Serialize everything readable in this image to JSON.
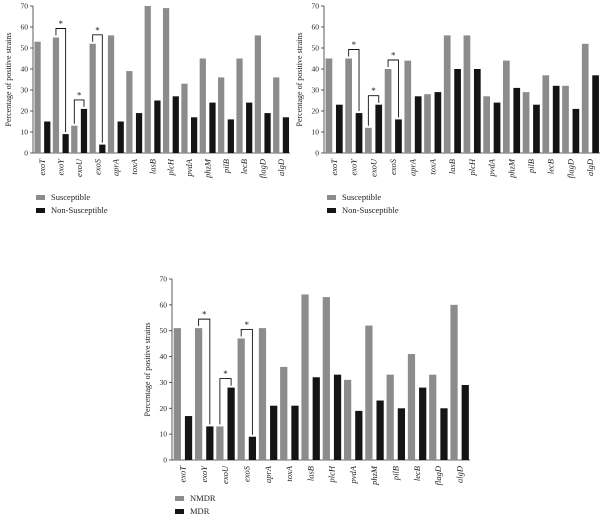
{
  "colors": {
    "series_a": "#8c8c8c",
    "series_b": "#141414",
    "axis": "#333333"
  },
  "chart_data": [
    {
      "type": "bar",
      "title": "",
      "xlabel": "",
      "ylabel": "Percentage of positive strains",
      "ylim": [
        0,
        70
      ],
      "yticks": [
        0,
        10,
        20,
        30,
        40,
        50,
        60,
        70
      ],
      "categories": [
        "exoT",
        "exoY",
        "exoU",
        "exoS",
        "aprA",
        "toxA",
        "lasB",
        "plcH",
        "pvdA",
        "phzM",
        "pilB",
        "lecB",
        "flagD",
        "algD"
      ],
      "series": [
        {
          "name": "Susceptible",
          "values": [
            53,
            55,
            13,
            52,
            56,
            39,
            70,
            69,
            33,
            45,
            36,
            45,
            56,
            36
          ]
        },
        {
          "name": "Non-Susceptible",
          "values": [
            15,
            9,
            21,
            4,
            15,
            19,
            25,
            27,
            17,
            24,
            16,
            24,
            19,
            17
          ]
        }
      ],
      "significance": [
        {
          "category": "exoY",
          "label": "*"
        },
        {
          "category": "exoU",
          "label": "*"
        },
        {
          "category": "exoS",
          "label": "*"
        }
      ],
      "legend_position": "bottom-left"
    },
    {
      "type": "bar",
      "title": "",
      "xlabel": "",
      "ylabel": "Percentage of positive strains",
      "ylim": [
        0,
        70
      ],
      "yticks": [
        0,
        10,
        20,
        30,
        40,
        50,
        60,
        70
      ],
      "categories": [
        "exoT",
        "exoY",
        "exoU",
        "exoS",
        "aprA",
        "toxA",
        "lasB",
        "plcH",
        "pvdA",
        "phzM",
        "pilB",
        "lecB",
        "flagD",
        "algD"
      ],
      "series": [
        {
          "name": "Susceptible",
          "values": [
            45,
            45,
            12,
            40,
            44,
            28,
            56,
            56,
            27,
            44,
            29,
            37,
            32,
            52
          ]
        },
        {
          "name": "Non-Susceptible",
          "values": [
            23,
            19,
            23,
            16,
            27,
            29,
            40,
            40,
            24,
            31,
            23,
            32,
            21,
            37
          ]
        }
      ],
      "significance": [
        {
          "category": "exoY",
          "label": "*"
        },
        {
          "category": "exoU",
          "label": "*"
        },
        {
          "category": "exoS",
          "label": "*"
        }
      ],
      "legend_position": "bottom-left"
    },
    {
      "type": "bar",
      "title": "",
      "xlabel": "",
      "ylabel": "Percentage of positive strains",
      "ylim": [
        0,
        70
      ],
      "yticks": [
        0,
        10,
        20,
        30,
        40,
        50,
        60,
        70
      ],
      "categories": [
        "exoT",
        "exoY",
        "exoU",
        "exoS",
        "aprA",
        "toxA",
        "lasB",
        "plcH",
        "pvdA",
        "phzM",
        "pilB",
        "lecB",
        "flagD",
        "algD"
      ],
      "series": [
        {
          "name": "NMDR",
          "values": [
            51,
            51,
            13,
            47,
            51,
            36,
            64,
            63,
            31,
            52,
            33,
            41,
            33,
            60
          ]
        },
        {
          "name": "MDR",
          "values": [
            17,
            13,
            28,
            9,
            21,
            21,
            32,
            33,
            19,
            23,
            20,
            28,
            20,
            29
          ]
        }
      ],
      "significance": [
        {
          "category": "exoY",
          "label": "*"
        },
        {
          "category": "exoU",
          "label": "*"
        },
        {
          "category": "exoS",
          "label": "*"
        }
      ],
      "legend_position": "bottom-left"
    }
  ]
}
